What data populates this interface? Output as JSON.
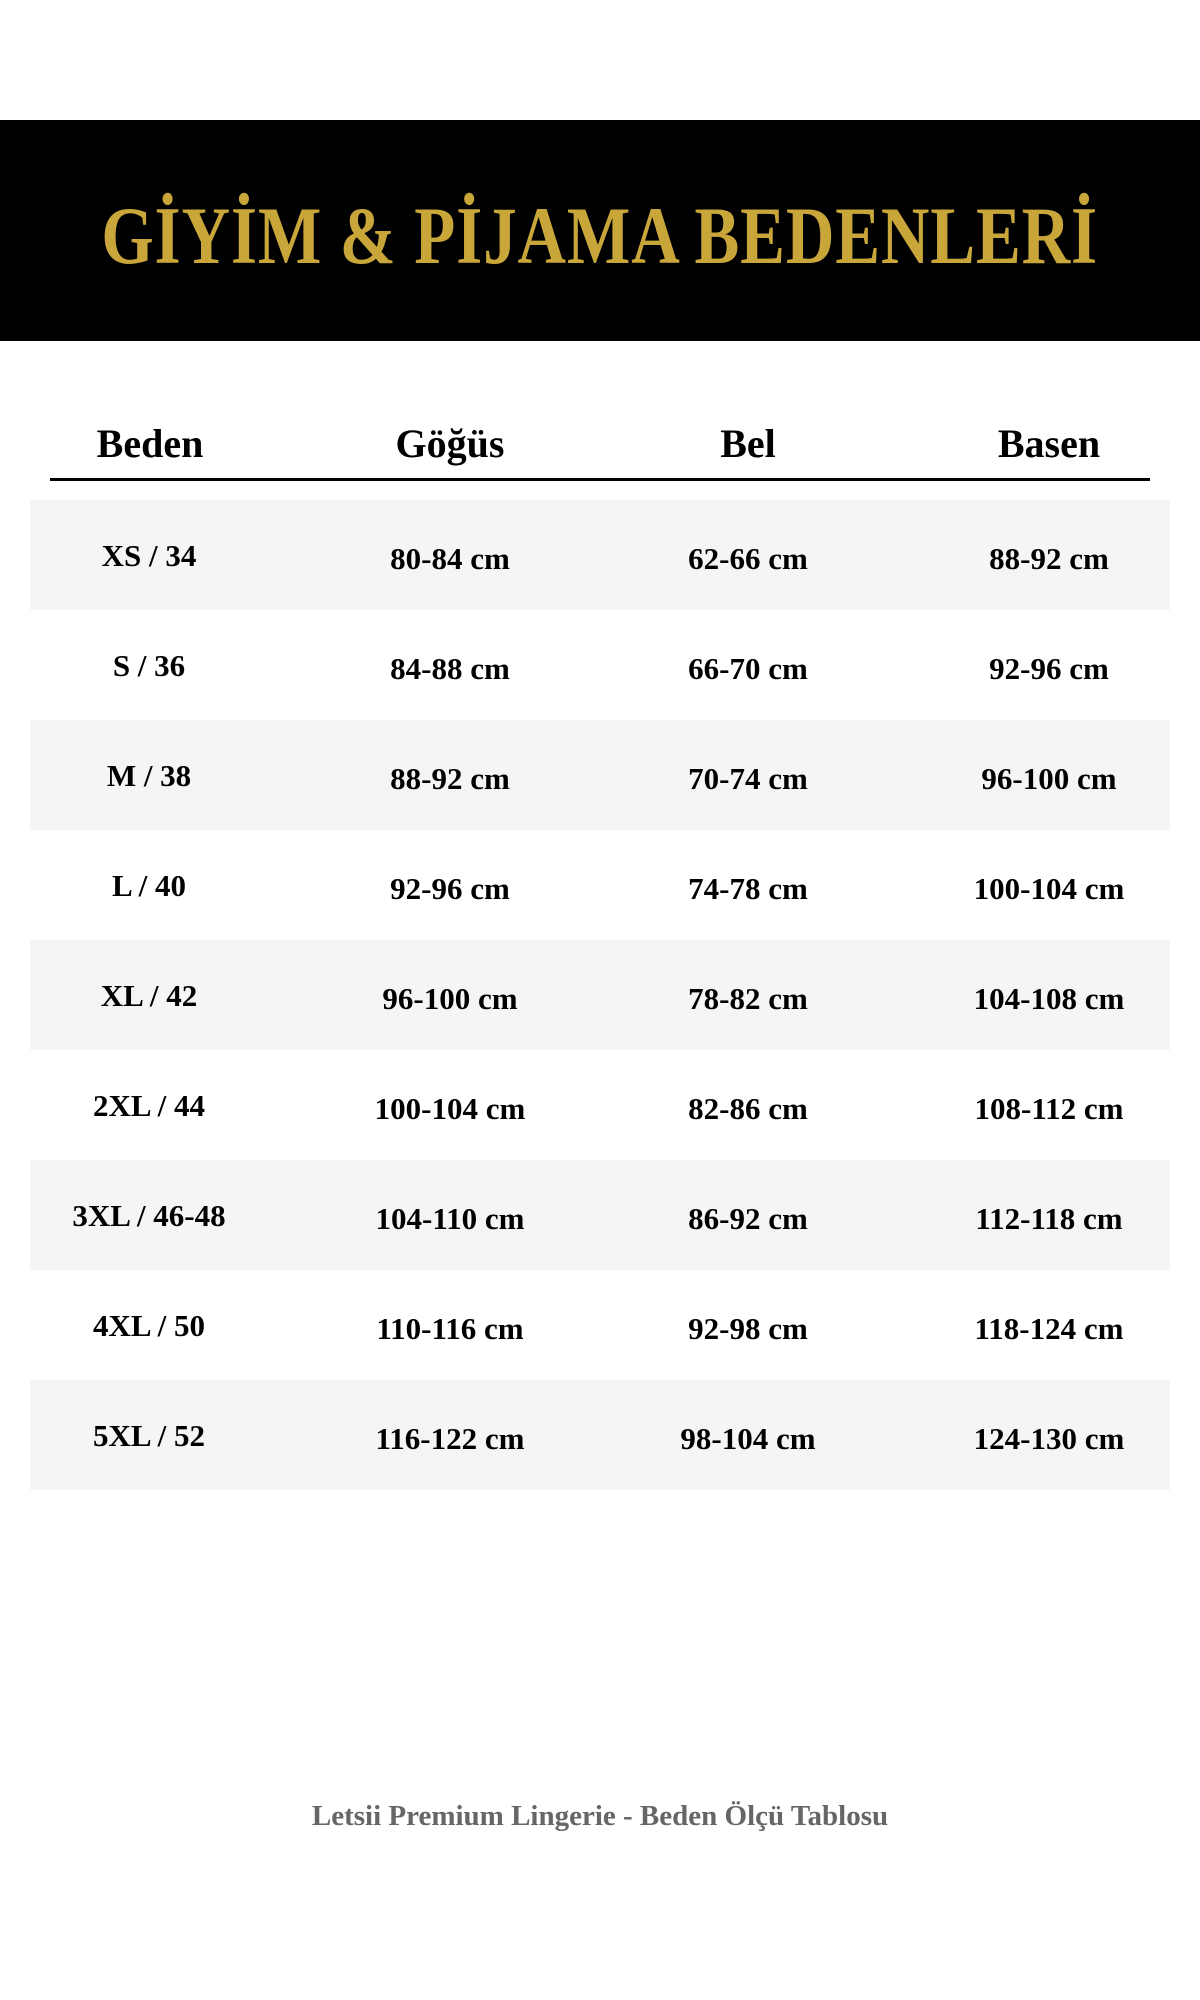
{
  "title": "GİYİM & PİJAMA BEDENLERİ",
  "colors": {
    "title_gold": "#C9A63A",
    "banner_bg": "#000000",
    "row_shade": "#f5f5f5",
    "footer_text": "#666666"
  },
  "table": {
    "headers": [
      "Beden",
      "Göğüs",
      "Bel",
      "Basen"
    ],
    "rows": [
      [
        "XS / 34",
        "80-84 cm",
        "62-66 cm",
        "88-92 cm"
      ],
      [
        "S / 36",
        "84-88 cm",
        "66-70 cm",
        "92-96 cm"
      ],
      [
        "M / 38",
        "88-92 cm",
        "70-74 cm",
        "96-100 cm"
      ],
      [
        "L / 40",
        "92-96 cm",
        "74-78 cm",
        "100-104 cm"
      ],
      [
        "XL / 42",
        "96-100 cm",
        "78-82 cm",
        "104-108 cm"
      ],
      [
        "2XL / 44",
        "100-104 cm",
        "82-86 cm",
        "108-112 cm"
      ],
      [
        "3XL / 46-48",
        "104-110 cm",
        "86-92 cm",
        "112-118 cm"
      ],
      [
        "4XL / 50",
        "110-116 cm",
        "92-98 cm",
        "118-124 cm"
      ],
      [
        "5XL / 52",
        "116-122 cm",
        "98-104 cm",
        "124-130 cm"
      ]
    ]
  },
  "footer": "Letsii Premium Lingerie - Beden Ölçü Tablosu"
}
